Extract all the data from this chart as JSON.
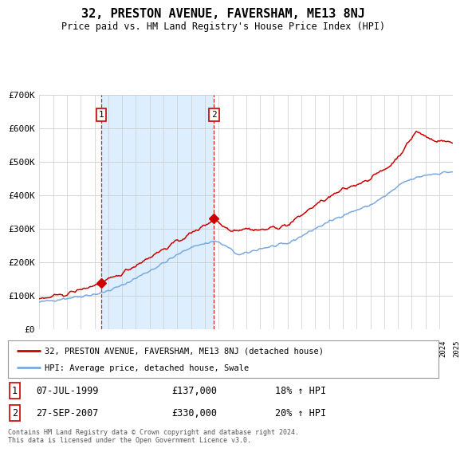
{
  "title": "32, PRESTON AVENUE, FAVERSHAM, ME13 8NJ",
  "subtitle": "Price paid vs. HM Land Registry's House Price Index (HPI)",
  "legend_line1": "32, PRESTON AVENUE, FAVERSHAM, ME13 8NJ (detached house)",
  "legend_line2": "HPI: Average price, detached house, Swale",
  "footer": "Contains HM Land Registry data © Crown copyright and database right 2024.\nThis data is licensed under the Open Government Licence v3.0.",
  "purchase1_date": "07-JUL-1999",
  "purchase1_price": 137000,
  "purchase1_hpi": "18% ↑ HPI",
  "purchase1_label": "1",
  "purchase2_date": "27-SEP-2007",
  "purchase2_price": 330000,
  "purchase2_hpi": "20% ↑ HPI",
  "purchase2_label": "2",
  "red_color": "#cc0000",
  "blue_color": "#7aaadd",
  "background_color": "#ffffff",
  "grid_color": "#cccccc",
  "shade_color": "#ddeeff",
  "ylim": [
    0,
    700000
  ],
  "yticks": [
    0,
    100000,
    200000,
    300000,
    400000,
    500000,
    600000,
    700000
  ],
  "ytick_labels": [
    "£0",
    "£100K",
    "£200K",
    "£300K",
    "£400K",
    "£500K",
    "£600K",
    "£700K"
  ],
  "xmin": 1995,
  "xmax": 2025
}
